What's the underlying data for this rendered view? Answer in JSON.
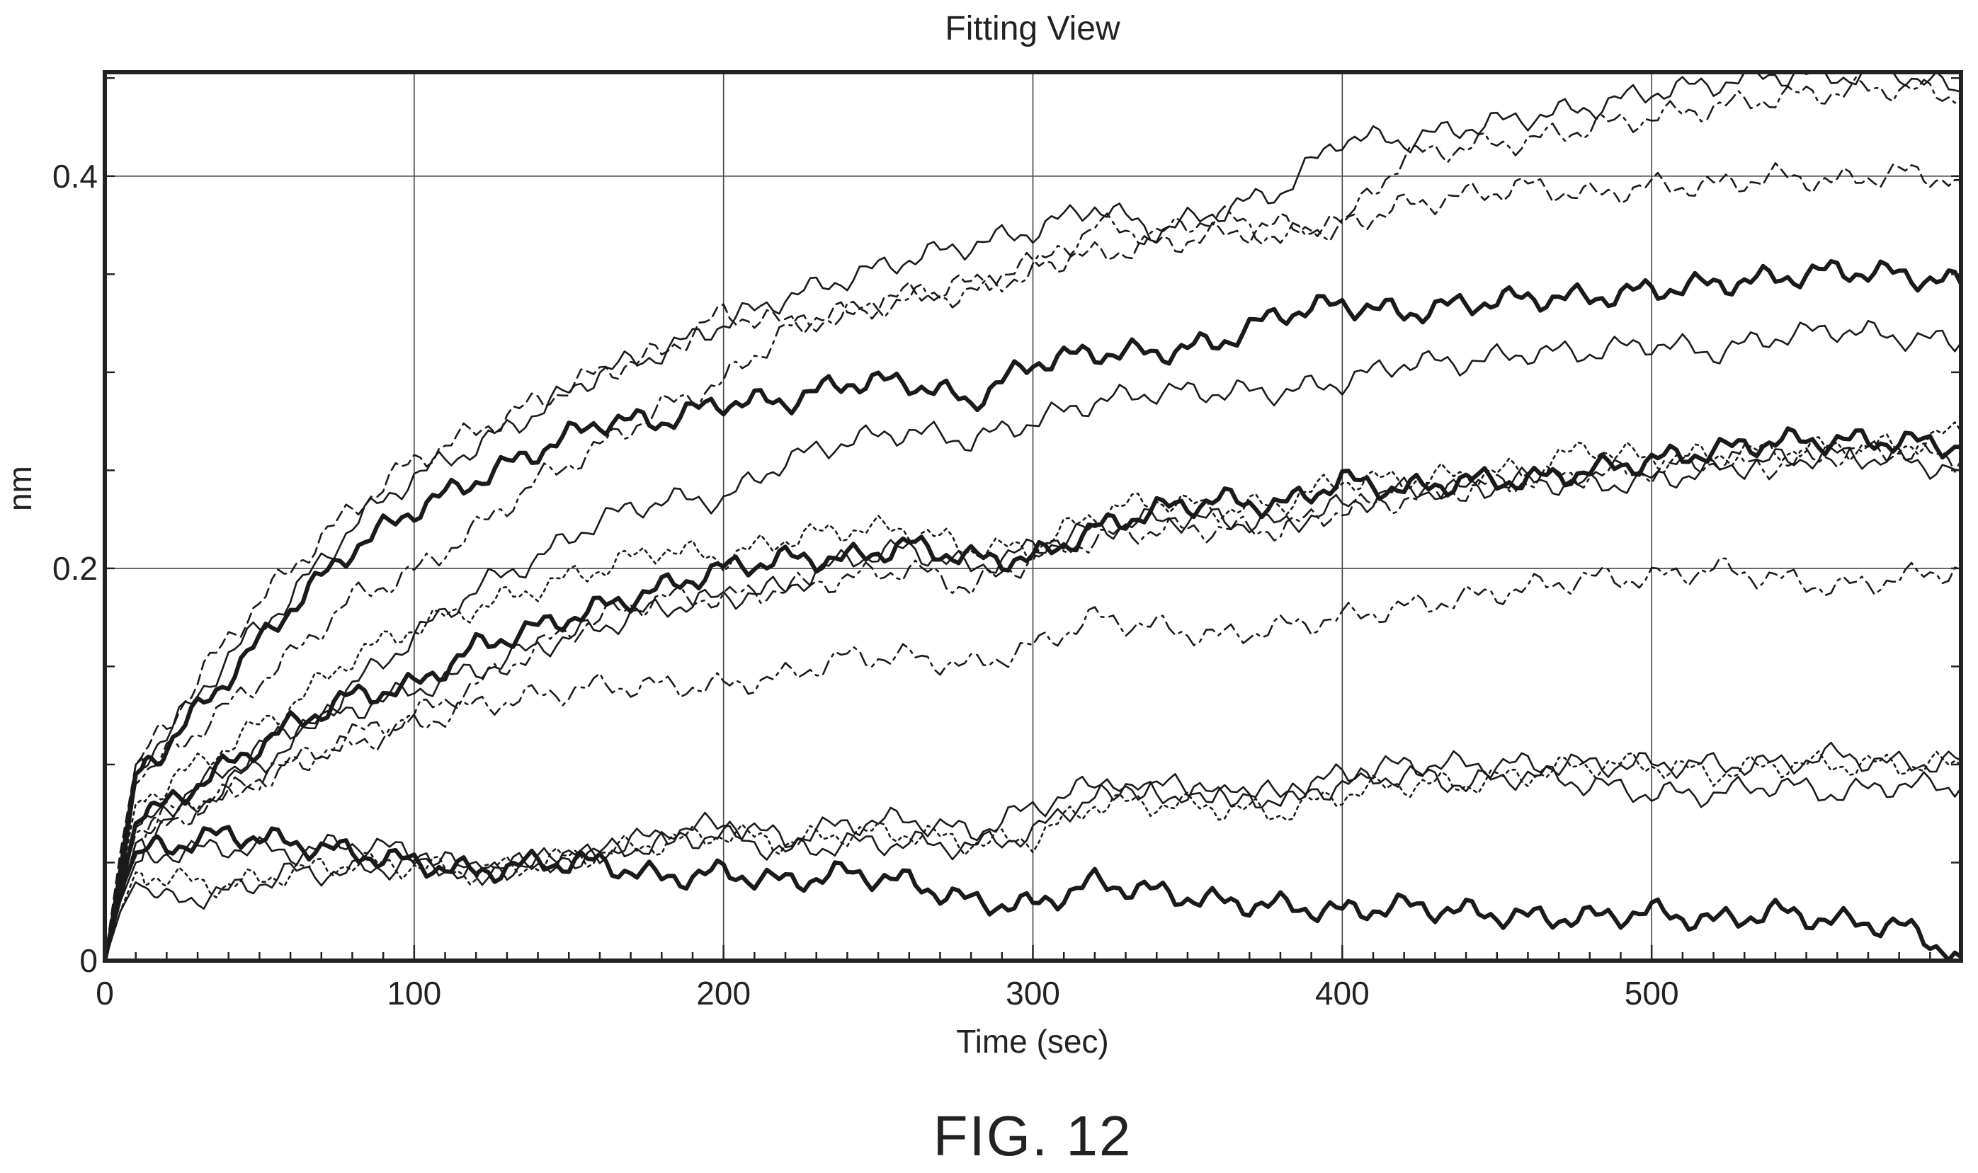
{
  "figure_label": "FIG. 12",
  "chart_data": {
    "type": "line",
    "title": "Fitting View",
    "xlabel": "Time (sec)",
    "ylabel": "nm",
    "xlim": [
      0,
      600
    ],
    "ylim": [
      0,
      0.453
    ],
    "x_ticks": [
      0,
      100,
      200,
      300,
      400,
      500
    ],
    "x_tick_labels": [
      "0",
      "100",
      "200",
      "300",
      "400",
      "500"
    ],
    "y_ticks": [
      0,
      0.2,
      0.4
    ],
    "y_tick_labels": [
      "0",
      "0.2",
      "0.4"
    ],
    "grid": true,
    "legend": "none",
    "x": [
      0,
      5,
      10,
      20,
      40,
      60,
      80,
      100,
      120,
      140,
      160,
      180,
      200,
      220,
      240,
      260,
      280,
      300,
      320,
      340,
      360,
      380,
      400,
      420,
      440,
      460,
      480,
      500,
      520,
      540,
      560,
      580,
      600
    ],
    "series": [
      {
        "style": "solid",
        "values": [
          0,
          0.05,
          0.1,
          0.115,
          0.155,
          0.185,
          0.222,
          0.247,
          0.262,
          0.28,
          0.3,
          0.31,
          0.325,
          0.338,
          0.348,
          0.358,
          0.365,
          0.372,
          0.385,
          0.372,
          0.382,
          0.392,
          0.42,
          0.418,
          0.425,
          0.43,
          0.435,
          0.443,
          0.447,
          0.452,
          0.451,
          0.453,
          0.443
        ]
      },
      {
        "style": "dash-dot",
        "values": [
          0,
          0.045,
          0.09,
          0.105,
          0.13,
          0.155,
          0.185,
          0.198,
          0.22,
          0.245,
          0.262,
          0.282,
          0.295,
          0.322,
          0.33,
          0.338,
          0.34,
          0.352,
          0.375,
          0.37,
          0.38,
          0.368,
          0.375,
          0.41,
          0.415,
          0.418,
          0.425,
          0.43,
          0.435,
          0.44,
          0.443,
          0.445,
          0.44
        ]
      },
      {
        "style": "dashed",
        "values": [
          0,
          0.055,
          0.1,
          0.12,
          0.165,
          0.2,
          0.23,
          0.255,
          0.27,
          0.285,
          0.3,
          0.31,
          0.33,
          0.325,
          0.33,
          0.34,
          0.345,
          0.355,
          0.36,
          0.365,
          0.37,
          0.375,
          0.375,
          0.385,
          0.39,
          0.395,
          0.39,
          0.395,
          0.395,
          0.4,
          0.397,
          0.402,
          0.398
        ]
      },
      {
        "style": "thick",
        "values": [
          0,
          0.04,
          0.095,
          0.11,
          0.145,
          0.18,
          0.21,
          0.23,
          0.245,
          0.26,
          0.275,
          0.275,
          0.285,
          0.285,
          0.295,
          0.295,
          0.285,
          0.305,
          0.31,
          0.31,
          0.315,
          0.33,
          0.335,
          0.33,
          0.335,
          0.338,
          0.338,
          0.342,
          0.345,
          0.348,
          0.352,
          0.35,
          0.345
        ]
      },
      {
        "style": "solid",
        "values": [
          0,
          0.03,
          0.06,
          0.07,
          0.09,
          0.11,
          0.14,
          0.165,
          0.19,
          0.205,
          0.225,
          0.235,
          0.235,
          0.255,
          0.265,
          0.27,
          0.265,
          0.275,
          0.285,
          0.29,
          0.29,
          0.29,
          0.295,
          0.305,
          0.305,
          0.31,
          0.31,
          0.315,
          0.31,
          0.318,
          0.322,
          0.318,
          0.315
        ]
      },
      {
        "style": "thick",
        "values": [
          0,
          0.035,
          0.07,
          0.08,
          0.1,
          0.12,
          0.135,
          0.14,
          0.16,
          0.17,
          0.18,
          0.19,
          0.2,
          0.205,
          0.205,
          0.212,
          0.205,
          0.205,
          0.22,
          0.23,
          0.235,
          0.232,
          0.245,
          0.24,
          0.245,
          0.245,
          0.25,
          0.255,
          0.26,
          0.265,
          0.265,
          0.265,
          0.262
        ]
      },
      {
        "style": "solid",
        "values": [
          0,
          0.035,
          0.068,
          0.078,
          0.098,
          0.118,
          0.128,
          0.138,
          0.148,
          0.16,
          0.17,
          0.18,
          0.185,
          0.19,
          0.205,
          0.21,
          0.2,
          0.21,
          0.22,
          0.225,
          0.225,
          0.222,
          0.232,
          0.24,
          0.24,
          0.245,
          0.242,
          0.245,
          0.25,
          0.255,
          0.258,
          0.255,
          0.25
        ]
      },
      {
        "style": "dotted",
        "values": [
          0,
          0.04,
          0.08,
          0.09,
          0.11,
          0.13,
          0.155,
          0.17,
          0.18,
          0.19,
          0.2,
          0.21,
          0.205,
          0.215,
          0.22,
          0.22,
          0.21,
          0.21,
          0.228,
          0.235,
          0.23,
          0.233,
          0.245,
          0.245,
          0.248,
          0.25,
          0.262,
          0.255,
          0.258,
          0.26,
          0.262,
          0.262,
          0.27
        ]
      },
      {
        "style": "dash-dot",
        "values": [
          0,
          0.035,
          0.065,
          0.075,
          0.085,
          0.1,
          0.115,
          0.125,
          0.14,
          0.16,
          0.175,
          0.185,
          0.185,
          0.19,
          0.195,
          0.2,
          0.19,
          0.205,
          0.215,
          0.22,
          0.22,
          0.22,
          0.23,
          0.235,
          0.24,
          0.245,
          0.248,
          0.25,
          0.255,
          0.252,
          0.258,
          0.26,
          0.255
        ]
      },
      {
        "style": "dash-dot",
        "values": [
          0,
          0.03,
          0.06,
          0.07,
          0.085,
          0.1,
          0.11,
          0.12,
          0.13,
          0.135,
          0.14,
          0.14,
          0.14,
          0.145,
          0.155,
          0.155,
          0.15,
          0.16,
          0.175,
          0.17,
          0.165,
          0.17,
          0.175,
          0.18,
          0.185,
          0.19,
          0.195,
          0.195,
          0.2,
          0.195,
          0.19,
          0.195,
          0.2
        ]
      },
      {
        "style": "solid",
        "values": [
          0,
          0.03,
          0.05,
          0.055,
          0.058,
          0.055,
          0.06,
          0.055,
          0.045,
          0.05,
          0.055,
          0.065,
          0.07,
          0.062,
          0.07,
          0.072,
          0.065,
          0.078,
          0.09,
          0.085,
          0.085,
          0.085,
          0.095,
          0.1,
          0.1,
          0.1,
          0.1,
          0.1,
          0.1,
          0.1,
          0.105,
          0.1,
          0.102
        ]
      },
      {
        "style": "dotted",
        "values": [
          0,
          0.025,
          0.045,
          0.042,
          0.038,
          0.045,
          0.05,
          0.048,
          0.045,
          0.05,
          0.055,
          0.06,
          0.065,
          0.06,
          0.065,
          0.065,
          0.06,
          0.062,
          0.08,
          0.08,
          0.078,
          0.075,
          0.085,
          0.09,
          0.09,
          0.095,
          0.1,
          0.1,
          0.095,
          0.1,
          0.1,
          0.1,
          0.1
        ]
      },
      {
        "style": "solid",
        "values": [
          0,
          0.025,
          0.04,
          0.03,
          0.035,
          0.045,
          0.045,
          0.05,
          0.045,
          0.05,
          0.055,
          0.06,
          0.065,
          0.055,
          0.06,
          0.06,
          0.058,
          0.065,
          0.085,
          0.09,
          0.085,
          0.082,
          0.09,
          0.095,
          0.09,
          0.095,
          0.09,
          0.085,
          0.085,
          0.09,
          0.085,
          0.09,
          0.088
        ]
      },
      {
        "style": "thick",
        "values": [
          0,
          0.035,
          0.055,
          0.058,
          0.065,
          0.06,
          0.055,
          0.05,
          0.045,
          0.05,
          0.05,
          0.042,
          0.045,
          0.04,
          0.045,
          0.04,
          0.03,
          0.028,
          0.04,
          0.035,
          0.03,
          0.028,
          0.025,
          0.028,
          0.025,
          0.022,
          0.022,
          0.025,
          0.02,
          0.025,
          0.02,
          0.018,
          0.002
        ]
      }
    ]
  }
}
